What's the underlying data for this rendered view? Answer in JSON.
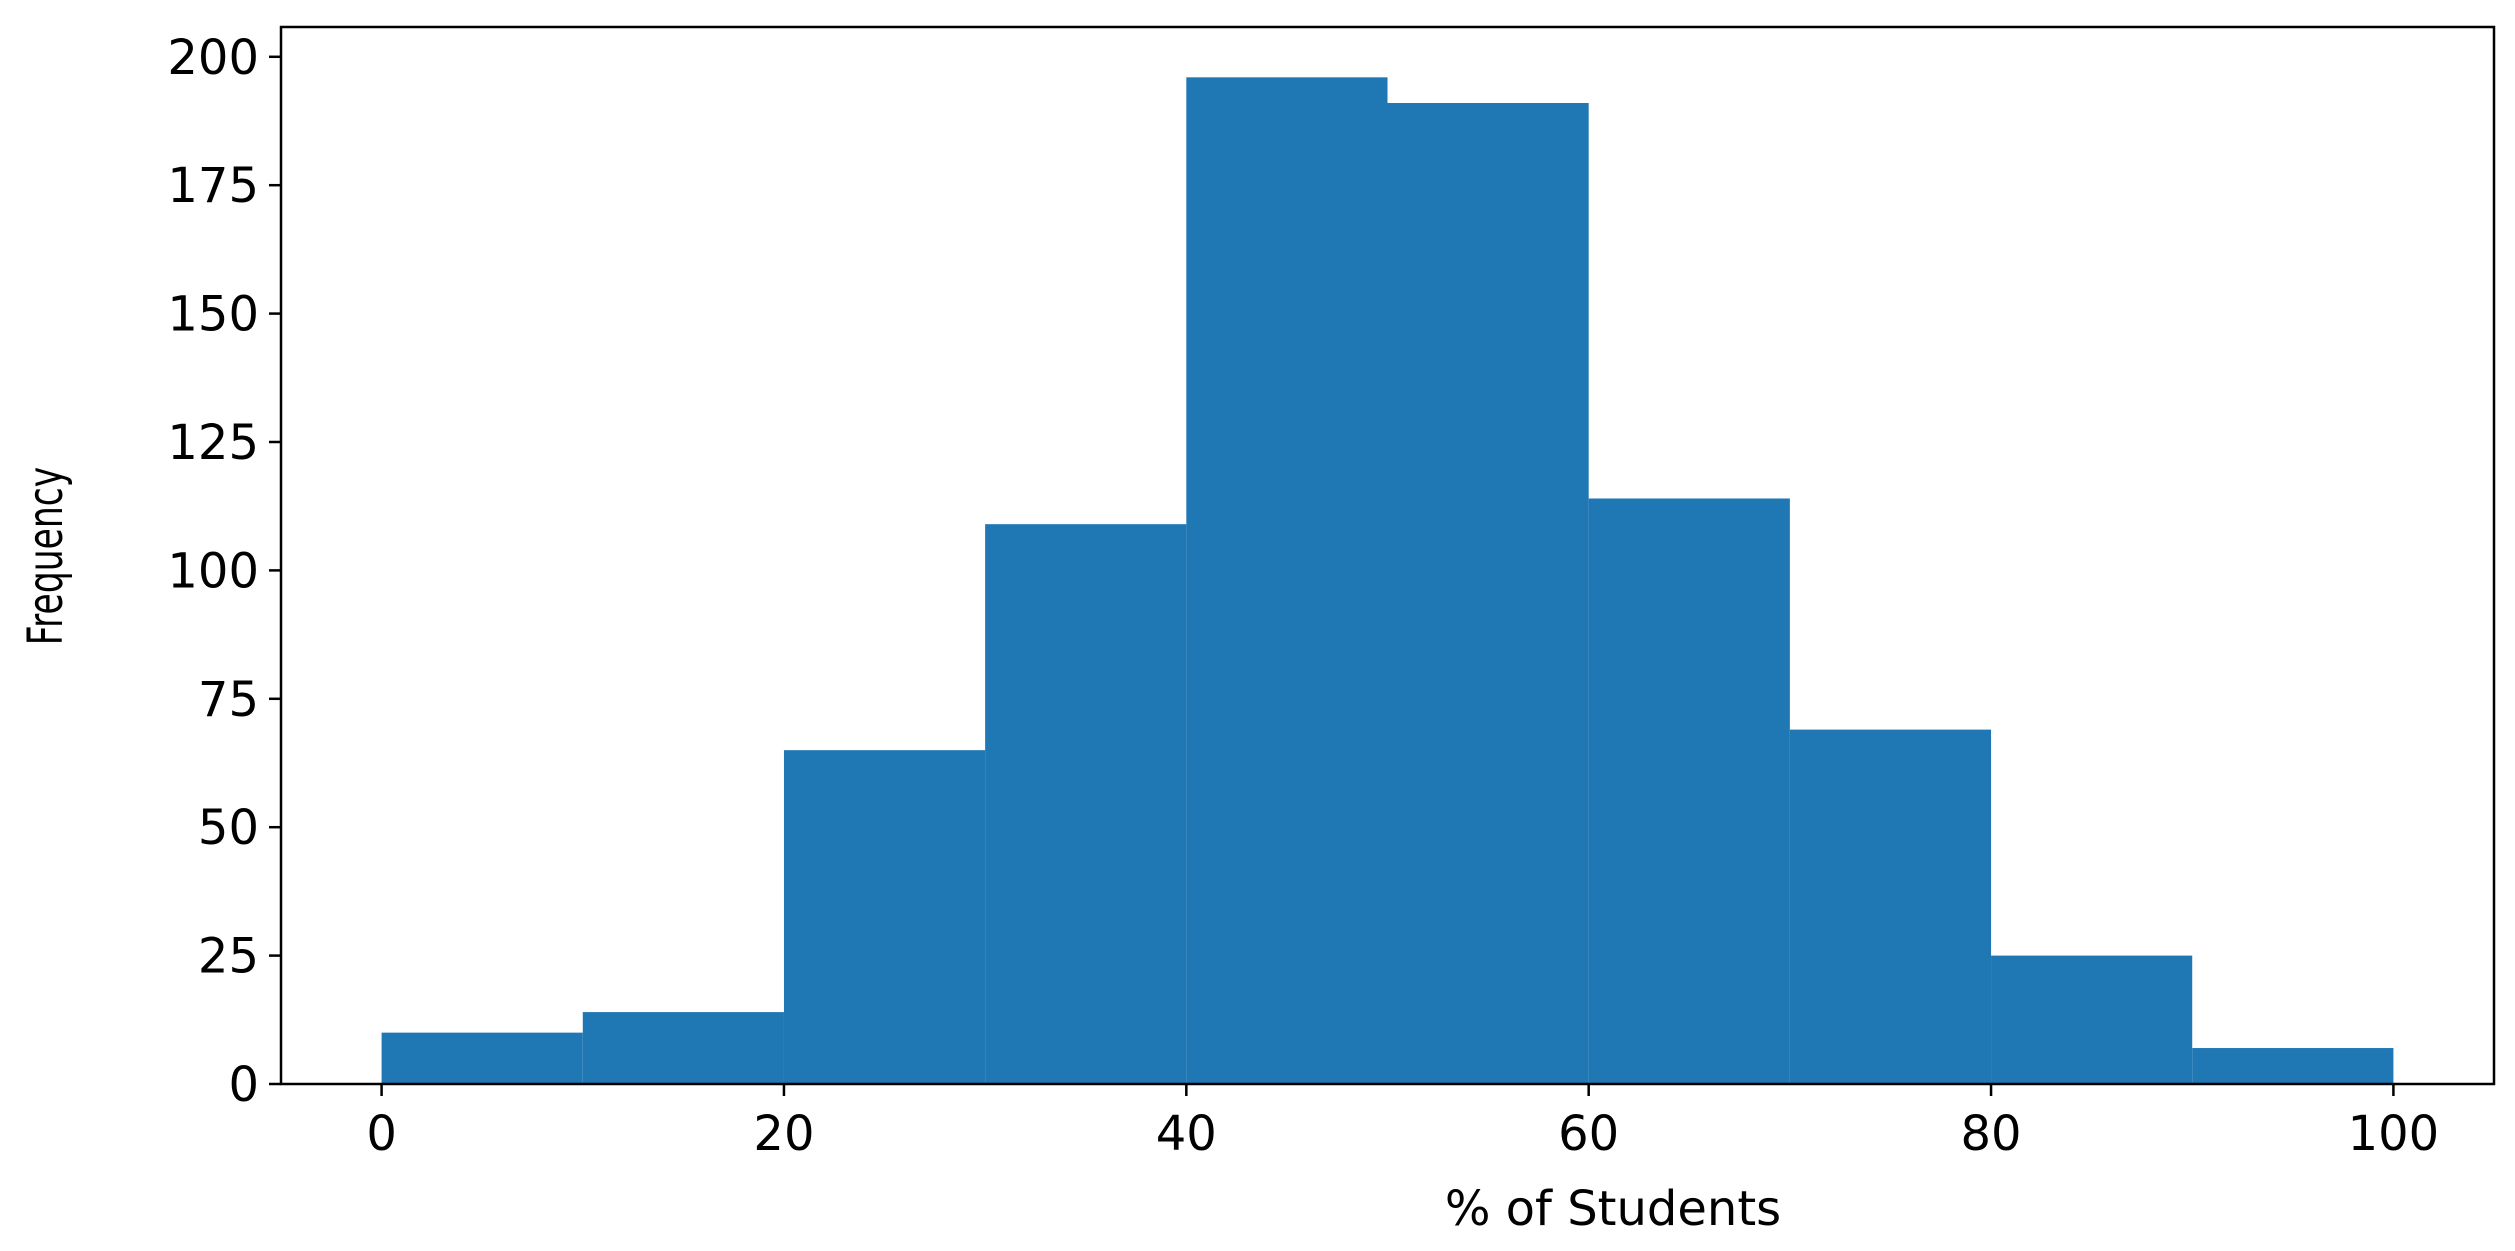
{
  "chart_data": {
    "type": "histogram",
    "x_label": "% of Students",
    "y_label": "Frequency",
    "bins": [
      0,
      10,
      20,
      30,
      40,
      50,
      60,
      70,
      80,
      90,
      100
    ],
    "values": [
      10,
      14,
      65,
      109,
      196,
      191,
      114,
      69,
      25,
      7
    ],
    "color": "#1f77b4",
    "xlim": [
      -5,
      105
    ],
    "xticks": [
      0,
      20,
      40,
      60,
      80,
      100
    ],
    "ylim": [
      0,
      205.8
    ],
    "yticks": [
      0,
      25,
      50,
      75,
      100,
      125,
      150,
      175,
      200
    ]
  }
}
